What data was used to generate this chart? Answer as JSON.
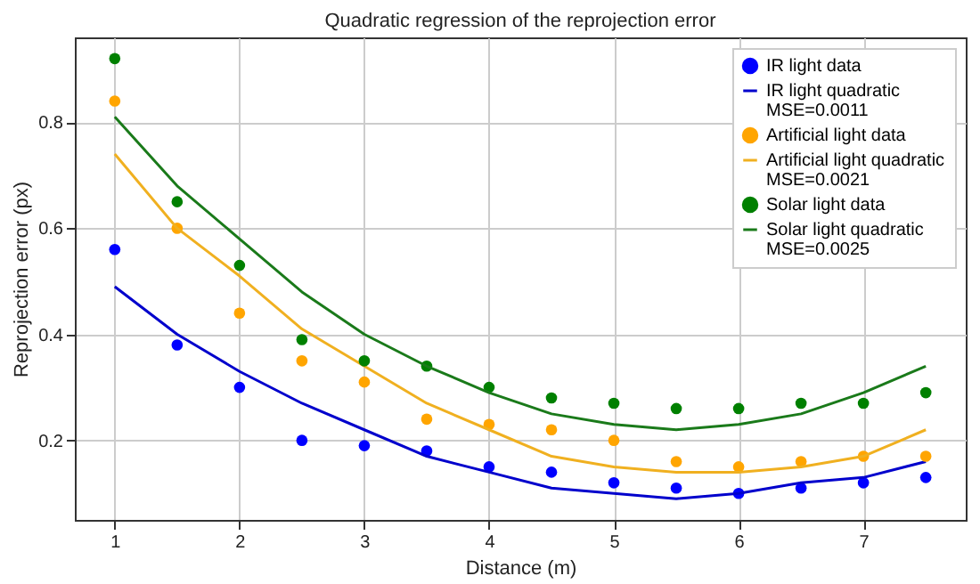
{
  "chart_data": {
    "type": "scatter",
    "title": "Quadratic regression of the reprojection error",
    "xlabel": "Distance (m)",
    "ylabel": "Reprojection error (px)",
    "x": [
      1,
      1.5,
      2,
      2.5,
      3,
      3.5,
      4,
      4.5,
      5,
      5.5,
      6,
      6.5,
      7,
      7.5
    ],
    "series": [
      {
        "name": "IR light data",
        "color": "#0000ff",
        "values": [
          0.56,
          0.38,
          0.3,
          0.2,
          0.19,
          0.18,
          0.15,
          0.14,
          0.12,
          0.11,
          0.1,
          0.11,
          0.12,
          0.13
        ]
      },
      {
        "name": "IR light quadratic\nMSE=0.0011",
        "type": "line",
        "line_style": "solid",
        "color": "#0000cc",
        "values": [
          0.49,
          0.4,
          0.33,
          0.27,
          0.22,
          0.17,
          0.14,
          0.11,
          0.1,
          0.09,
          0.1,
          0.12,
          0.13,
          0.16
        ]
      },
      {
        "name": "Artificial light data",
        "color": "#ffa500",
        "values": [
          0.84,
          0.6,
          0.44,
          0.35,
          0.31,
          0.24,
          0.23,
          0.22,
          0.2,
          0.16,
          0.15,
          0.16,
          0.17,
          0.17
        ]
      },
      {
        "name": "Artificial light quadratic\nMSE=0.0021",
        "type": "line",
        "line_style": "solid",
        "color": "#f0b020",
        "values": [
          0.74,
          0.6,
          0.51,
          0.41,
          0.34,
          0.27,
          0.22,
          0.17,
          0.15,
          0.14,
          0.14,
          0.15,
          0.17,
          0.22
        ]
      },
      {
        "name": "Solar light data",
        "color": "#008000",
        "values": [
          0.92,
          0.65,
          0.53,
          0.39,
          0.35,
          0.34,
          0.3,
          0.28,
          0.27,
          0.26,
          0.26,
          0.27,
          0.27,
          0.29
        ]
      },
      {
        "name": "Solar light quadratic\nMSE=0.0025",
        "type": "line",
        "line_style": "solid",
        "color": "#1a7a1a",
        "values": [
          0.81,
          0.68,
          0.58,
          0.48,
          0.4,
          0.34,
          0.29,
          0.25,
          0.23,
          0.22,
          0.23,
          0.25,
          0.29,
          0.34
        ]
      }
    ],
    "xlim": [
      0.68,
      7.82
    ],
    "xticks": [
      1,
      2,
      3,
      4,
      5,
      6,
      7
    ],
    "ylim": [
      0.05,
      0.96
    ],
    "yticks": [
      0.2,
      0.4,
      0.6,
      0.8
    ],
    "grid": true,
    "legend": "top right"
  }
}
